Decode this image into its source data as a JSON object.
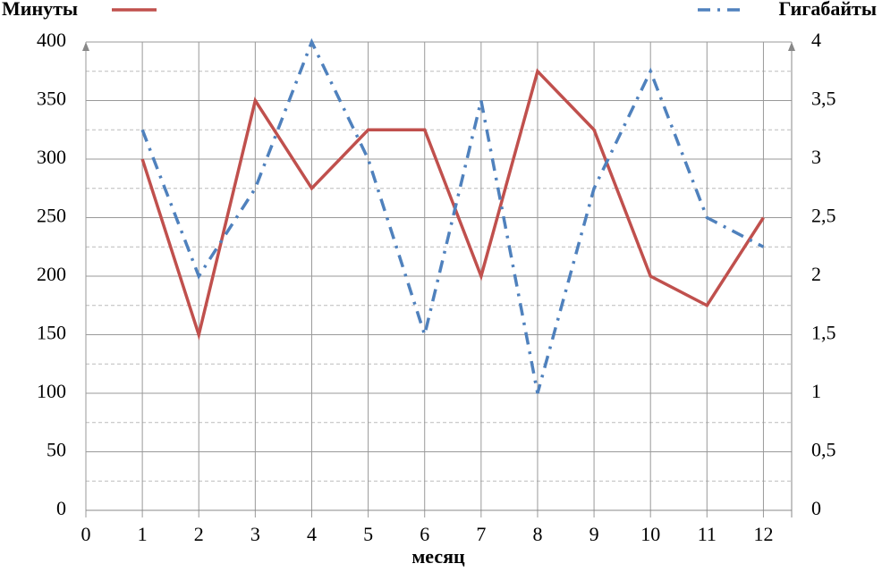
{
  "chart_data": {
    "type": "line",
    "x_label": "месяц",
    "x": [
      1,
      2,
      3,
      4,
      5,
      6,
      7,
      8,
      9,
      10,
      11,
      12
    ],
    "xlim": [
      0,
      12.5
    ],
    "xticks": [
      0,
      1,
      2,
      3,
      4,
      5,
      6,
      7,
      8,
      9,
      10,
      11,
      12
    ],
    "ylim": [
      0,
      400
    ],
    "yticks": [
      0,
      50,
      100,
      150,
      200,
      250,
      300,
      350,
      400
    ],
    "y2lim": [
      0,
      4
    ],
    "y2ticks": [
      0,
      {
        "value": 0.5,
        "label": "0,5"
      },
      1,
      {
        "value": 1.5,
        "label": "1,5"
      },
      2,
      {
        "value": 2.5,
        "label": "2,5"
      },
      3,
      {
        "value": 3.5,
        "label": "3,5"
      },
      4
    ],
    "grid": true,
    "series": [
      {
        "name": "Минуты",
        "color": "#c0504d",
        "dash": "solid",
        "legend": "top-left",
        "values": [
          300,
          150,
          350,
          275,
          325,
          325,
          200,
          375,
          325,
          200,
          175,
          250
        ]
      },
      {
        "name": "Гигабайты",
        "color": "#4f81bd",
        "dash": "dashdot",
        "axis": "y2",
        "legend": "top-right",
        "values": [
          3.25,
          2,
          2.75,
          4,
          3,
          1.5,
          3.5,
          1,
          2.75,
          3.75,
          2.5,
          2.25
        ]
      }
    ]
  }
}
